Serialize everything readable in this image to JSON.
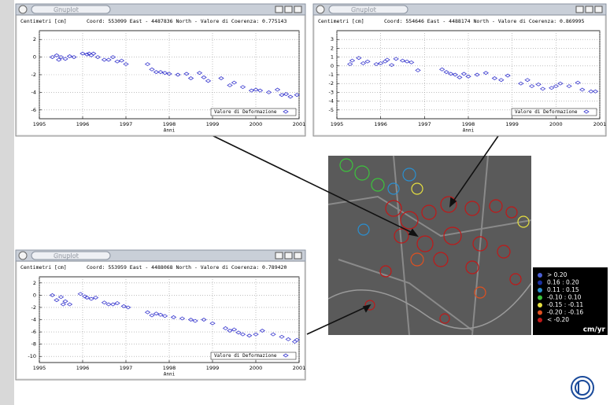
{
  "chart_data": [
    {
      "type": "scatter",
      "window_title": "Gnuplot",
      "title": "Coord: 553099 East - 4487836 North  -  Valore di Coerenza: 0.775143",
      "ylabel": "Centimetri [cm]",
      "xlabel": "Anni",
      "xlim": [
        1995,
        2001
      ],
      "xticks": [
        1995,
        1996,
        1997,
        1998,
        1999,
        2000,
        2001
      ],
      "ylim": [
        -7,
        3
      ],
      "yticks": [
        2,
        0,
        -2,
        -4,
        -6
      ],
      "grid": true,
      "series": [
        {
          "name": "Valore di Deformazione",
          "color": "#3b3bcf",
          "x": [
            1995.3,
            1995.4,
            1995.45,
            1995.5,
            1995.6,
            1995.7,
            1995.8,
            1996.0,
            1996.1,
            1996.15,
            1996.2,
            1996.25,
            1996.35,
            1996.5,
            1996.6,
            1996.7,
            1996.8,
            1996.9,
            1997.0,
            1997.5,
            1997.6,
            1997.7,
            1997.8,
            1997.9,
            1998.0,
            1998.2,
            1998.4,
            1998.5,
            1998.7,
            1998.8,
            1998.9,
            1999.2,
            1999.4,
            1999.5,
            1999.7,
            1999.9,
            2000.0,
            2000.1,
            2000.3,
            2000.5,
            2000.6,
            2000.7,
            2000.8,
            2000.95
          ],
          "values": [
            0,
            0.2,
            -0.3,
            0,
            -0.2,
            0.1,
            0,
            0.4,
            0.3,
            0.4,
            0.2,
            0.4,
            0,
            -0.3,
            -0.3,
            0,
            -0.5,
            -0.4,
            -0.8,
            -0.8,
            -1.4,
            -1.7,
            -1.7,
            -1.8,
            -1.9,
            -2,
            -1.9,
            -2.4,
            -1.8,
            -2.3,
            -2.7,
            -2.4,
            -3.2,
            -2.9,
            -3.4,
            -3.8,
            -3.7,
            -3.8,
            -4,
            -3.7,
            -4.3,
            -4.2,
            -4.5,
            -4.3
          ]
        }
      ]
    },
    {
      "type": "scatter",
      "window_title": "Gnuplot",
      "title": "Coord: 554646 East - 4488174 North  -  Valore di Coerenza: 0.869995",
      "ylabel": "Centimetri [cm]",
      "xlabel": "Anni",
      "xlim": [
        1995,
        2001
      ],
      "xticks": [
        1995,
        1996,
        1997,
        1998,
        1999,
        2000,
        2001
      ],
      "ylim": [
        -6,
        4
      ],
      "yticks": [
        3,
        2,
        1,
        0,
        -1,
        -2,
        -3,
        -4,
        -5
      ],
      "grid": true,
      "series": [
        {
          "name": "Valore di Deformazione",
          "color": "#3b3bcf",
          "x": [
            1995.3,
            1995.35,
            1995.5,
            1995.6,
            1995.7,
            1995.9,
            1996.0,
            1996.1,
            1996.15,
            1996.25,
            1996.35,
            1996.5,
            1996.6,
            1996.7,
            1996.85,
            1997.4,
            1997.5,
            1997.6,
            1997.7,
            1997.8,
            1997.9,
            1998.0,
            1998.2,
            1998.4,
            1998.6,
            1998.75,
            1998.9,
            1999.2,
            1999.35,
            1999.45,
            1999.6,
            1999.7,
            1999.9,
            2000.0,
            2000.1,
            2000.3,
            2000.5,
            2000.6,
            2000.8,
            2000.9
          ],
          "values": [
            0.2,
            0.6,
            0.9,
            0.3,
            0.5,
            0.2,
            0.3,
            0.5,
            0.7,
            0.1,
            0.8,
            0.6,
            0.5,
            0.4,
            -0.5,
            -0.4,
            -0.7,
            -0.9,
            -1,
            -1.3,
            -0.9,
            -1.2,
            -1,
            -0.8,
            -1.4,
            -1.6,
            -1.1,
            -2,
            -1.6,
            -2.3,
            -2.1,
            -2.6,
            -2.5,
            -2.3,
            -2,
            -2.3,
            -1.9,
            -2.7,
            -2.9,
            -2.9
          ]
        }
      ]
    },
    {
      "type": "scatter",
      "window_title": "Gnuplot",
      "title": "Coord: 553959 East - 4488068 North  -  Valore di Coerenza: 0.789420",
      "ylabel": "Centimetri [cm]",
      "xlabel": "Anni",
      "xlim": [
        1995,
        2001
      ],
      "xticks": [
        1995,
        1996,
        1997,
        1998,
        1999,
        2000,
        2001
      ],
      "ylim": [
        -11,
        3
      ],
      "yticks": [
        2,
        0,
        -2,
        -4,
        -6,
        -8,
        -10
      ],
      "grid": true,
      "series": [
        {
          "name": "Valore di Deformazione",
          "color": "#3b3bcf",
          "x": [
            1995.3,
            1995.4,
            1995.5,
            1995.55,
            1995.6,
            1995.7,
            1995.95,
            1996.05,
            1996.1,
            1996.2,
            1996.3,
            1996.5,
            1996.6,
            1996.7,
            1996.8,
            1996.95,
            1997.05,
            1997.5,
            1997.6,
            1997.7,
            1997.8,
            1997.9,
            1998.1,
            1998.3,
            1998.5,
            1998.6,
            1998.8,
            1999.0,
            1999.3,
            1999.4,
            1999.5,
            1999.6,
            1999.7,
            1999.85,
            2000.0,
            2000.15,
            2000.4,
            2000.6,
            2000.75,
            2000.9,
            2000.95
          ],
          "values": [
            0,
            -0.8,
            -0.3,
            -1.5,
            -1,
            -1.5,
            0.2,
            -0.2,
            -0.4,
            -0.6,
            -0.4,
            -1.2,
            -1.5,
            -1.5,
            -1.3,
            -1.8,
            -2,
            -2.8,
            -3.3,
            -3,
            -3.2,
            -3.4,
            -3.6,
            -3.8,
            -4,
            -4.2,
            -4,
            -4.6,
            -5.4,
            -5.8,
            -5.6,
            -6.1,
            -6.4,
            -6.6,
            -6.4,
            -5.8,
            -6.4,
            -6.8,
            -7.2,
            -7.6,
            -7.3
          ]
        }
      ]
    }
  ],
  "map_legend": {
    "entries": [
      {
        "label": "> 0.20",
        "color": "#4a5fd6"
      },
      {
        "label": "0.16 :  0.20",
        "color": "#1a2fa0"
      },
      {
        "label": "0.11 :  0.15",
        "color": "#2a8fd0"
      },
      {
        "label": "-0.10 :  0.10",
        "color": "#3cc43c"
      },
      {
        "label": "-0.15 : -0.11",
        "color": "#e6e040"
      },
      {
        "label": "-0.20 : -0.16",
        "color": "#e05020"
      },
      {
        "label": "< -0.20",
        "color": "#c01818"
      }
    ],
    "unit": "cm/yr"
  }
}
